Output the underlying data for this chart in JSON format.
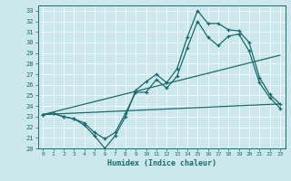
{
  "xlabel": "Humidex (Indice chaleur)",
  "background_color": "#cce8ed",
  "line_color": "#1a6b6b",
  "xlim": [
    -0.5,
    23.5
  ],
  "ylim": [
    20,
    33.5
  ],
  "xticks": [
    0,
    1,
    2,
    3,
    4,
    5,
    6,
    7,
    8,
    9,
    10,
    11,
    12,
    13,
    14,
    15,
    16,
    17,
    18,
    19,
    20,
    21,
    22,
    23
  ],
  "yticks": [
    20,
    21,
    22,
    23,
    24,
    25,
    26,
    27,
    28,
    29,
    30,
    31,
    32,
    33
  ],
  "line1_x": [
    0,
    1,
    2,
    3,
    4,
    5,
    6,
    7,
    8,
    9,
    10,
    11,
    12,
    13,
    14,
    15,
    16,
    17,
    18,
    19,
    20,
    21,
    22,
    23
  ],
  "line1_y": [
    23.2,
    23.3,
    23.0,
    22.8,
    22.2,
    21.2,
    20.0,
    21.2,
    23.0,
    25.5,
    26.3,
    27.0,
    26.2,
    27.5,
    30.5,
    33.0,
    31.8,
    31.8,
    31.2,
    31.1,
    30.0,
    26.7,
    25.1,
    24.2
  ],
  "line2_x": [
    0,
    1,
    2,
    3,
    4,
    5,
    6,
    7,
    8,
    9,
    10,
    11,
    12,
    13,
    14,
    15,
    16,
    17,
    18,
    19,
    20,
    21,
    22,
    23
  ],
  "line2_y": [
    23.2,
    23.3,
    23.0,
    22.8,
    22.4,
    21.5,
    20.9,
    21.5,
    23.3,
    25.3,
    25.3,
    26.5,
    25.7,
    26.8,
    29.5,
    32.0,
    30.5,
    29.7,
    30.6,
    30.8,
    29.2,
    26.2,
    24.8,
    23.8
  ],
  "trend1_x": [
    0,
    23
  ],
  "trend1_y": [
    23.2,
    28.8
  ],
  "trend2_x": [
    0,
    23
  ],
  "trend2_y": [
    23.2,
    24.2
  ]
}
